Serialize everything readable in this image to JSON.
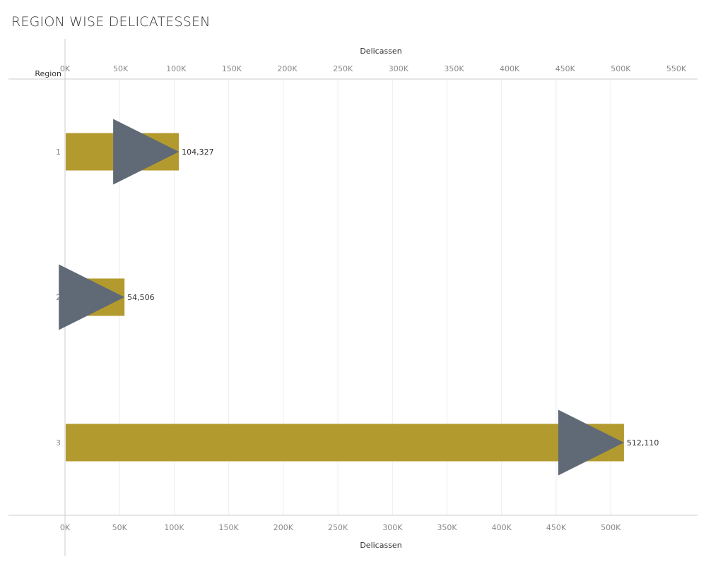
{
  "title": "REGION WISE DELICATESSEN",
  "colors": {
    "bar": "#b39a2f",
    "marker": "#5f6a76",
    "grid": "#eeeeee",
    "axis_line": "#cccccc",
    "text": "#333333",
    "tick_text": "#888888"
  },
  "chart_data": {
    "type": "bar",
    "orientation": "horizontal",
    "title": "REGION WISE DELICATESSEN",
    "row_header": "Region",
    "xlabel": "Delicassen",
    "categories": [
      "1",
      "2",
      "3"
    ],
    "values": [
      104327,
      54506,
      512110
    ],
    "data_labels": [
      "104,327",
      "54,506",
      "512,110"
    ],
    "markers": {
      "shape": "right-pointing-triangle",
      "color": "#5f6a76",
      "values": [
        104327,
        54506,
        512110
      ]
    },
    "axes": {
      "top": {
        "title": "Delicassen",
        "range": [
          0,
          550000
        ],
        "ticks": [
          {
            "value": 0,
            "label": "0K"
          },
          {
            "value": 50000,
            "label": "50K"
          },
          {
            "value": 100000,
            "label": "100K"
          },
          {
            "value": 150000,
            "label": "150K"
          },
          {
            "value": 200000,
            "label": "200K"
          },
          {
            "value": 250000,
            "label": "250K"
          },
          {
            "value": 300000,
            "label": "300K"
          },
          {
            "value": 350000,
            "label": "350K"
          },
          {
            "value": 400000,
            "label": "400K"
          },
          {
            "value": 450000,
            "label": "450K"
          },
          {
            "value": 500000,
            "label": "500K"
          },
          {
            "value": 550000,
            "label": "550K"
          }
        ]
      },
      "bottom": {
        "title": "Delicassen",
        "range": [
          0,
          540000
        ],
        "ticks": [
          {
            "value": 0,
            "label": "0K"
          },
          {
            "value": 50000,
            "label": "50K"
          },
          {
            "value": 100000,
            "label": "100K"
          },
          {
            "value": 150000,
            "label": "150K"
          },
          {
            "value": 200000,
            "label": "200K"
          },
          {
            "value": 250000,
            "label": "250K"
          },
          {
            "value": 300000,
            "label": "300K"
          },
          {
            "value": 350000,
            "label": "350K"
          },
          {
            "value": 400000,
            "label": "400K"
          },
          {
            "value": 450000,
            "label": "450K"
          },
          {
            "value": 500000,
            "label": "500K"
          }
        ]
      }
    },
    "grid": true,
    "legend": "none"
  }
}
